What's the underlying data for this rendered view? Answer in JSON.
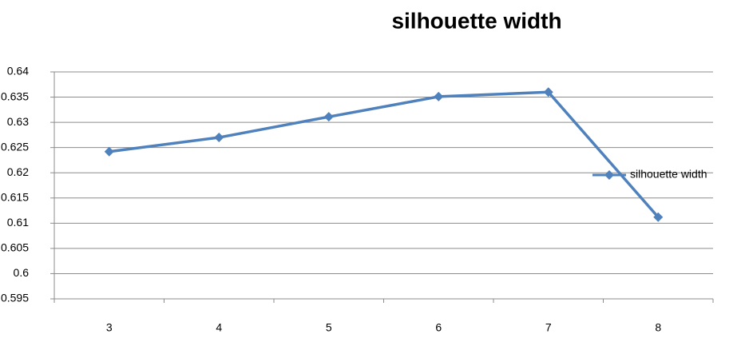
{
  "chart_data": {
    "type": "line",
    "title": "silhouette width",
    "categories": [
      "3",
      "4",
      "5",
      "6",
      "7",
      "8"
    ],
    "series": [
      {
        "name": "silhouette width",
        "color": "#4f81bd",
        "values": [
          0.6242,
          0.627,
          0.6311,
          0.6351,
          0.636,
          0.6112
        ]
      }
    ],
    "ylim": [
      0.595,
      0.64
    ],
    "yticks": [
      0.595,
      0.6,
      0.605,
      0.61,
      0.615,
      0.62,
      0.625,
      0.63,
      0.635,
      0.64
    ],
    "grid": true,
    "legend": "right"
  }
}
